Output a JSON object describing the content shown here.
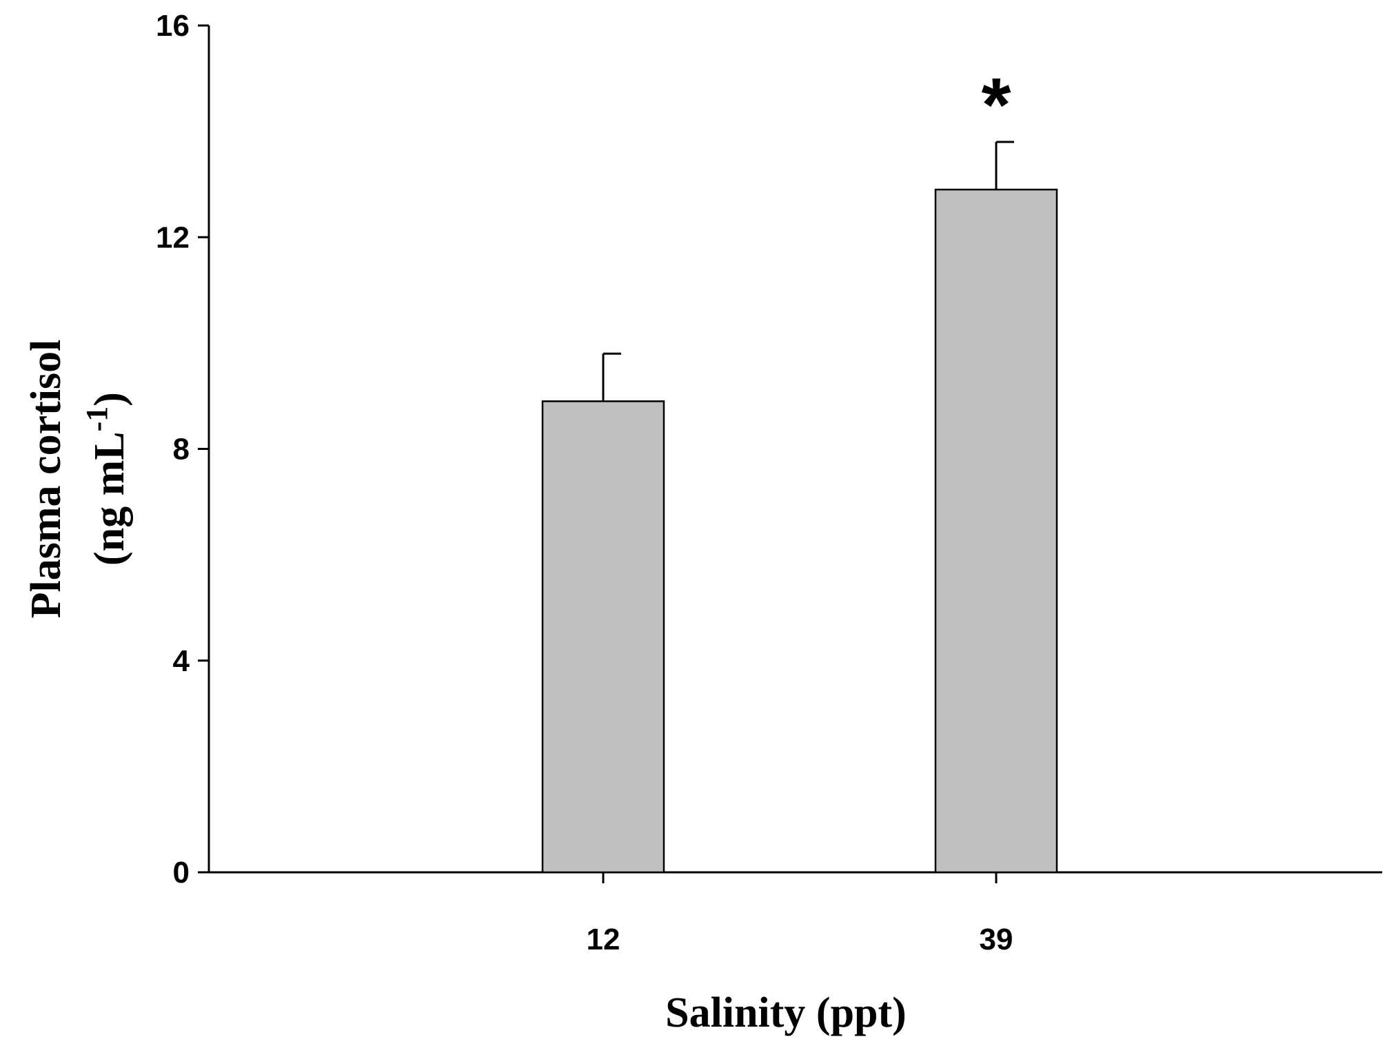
{
  "chart_data": {
    "type": "bar",
    "categories": [
      "12",
      "39"
    ],
    "values": [
      8.9,
      12.9
    ],
    "errors": [
      0.9,
      0.9
    ],
    "annotations": [
      "",
      "*"
    ],
    "xlabel": "Salinity (ppt)",
    "ylabel_line1": "Plasma cortisol",
    "ylabel_line2_main": "(ng mL",
    "ylabel_line2_sup": "-1",
    "ylabel_line2_end": ")",
    "ylim": [
      0,
      16
    ],
    "yticks": [
      "0",
      "4",
      "8",
      "12",
      "16"
    ],
    "bar_color": "#c0c0c0",
    "grid": false
  }
}
